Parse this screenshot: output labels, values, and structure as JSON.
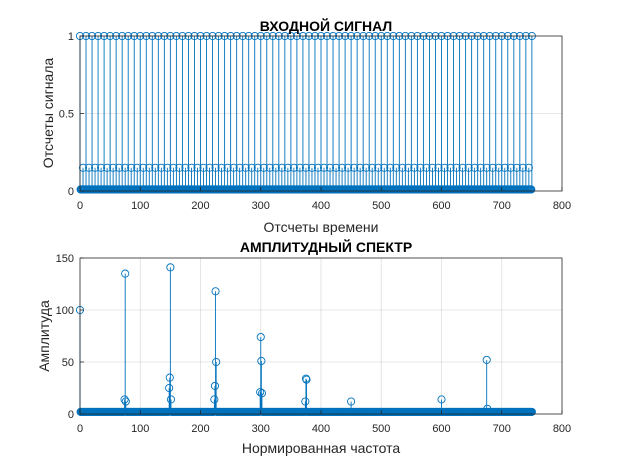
{
  "chart_data": [
    {
      "type": "stem",
      "title": "ВХОДНОЙ СИГНАЛ",
      "xlabel": "Отсчеты времени",
      "ylabel": "Отсчеты сигнала",
      "xlim": [
        0,
        800
      ],
      "ylim": [
        0,
        1
      ],
      "xticks": [
        "0",
        "100",
        "200",
        "300",
        "400",
        "500",
        "600",
        "700",
        "800"
      ],
      "yticks": [
        "0",
        "0.5",
        "1"
      ],
      "grid": true,
      "color": "#0072BD",
      "n_samples": 751,
      "peak_period": 10,
      "peak_x_first": 0,
      "peak_x_last": 750,
      "peak_value": 1,
      "secondary_period": 10,
      "secondary_offset": 5,
      "secondary_value": 0.15,
      "baseline_value": 0.01
    },
    {
      "type": "stem",
      "title": "АМПЛИТУДНЫЙ СПЕКТР",
      "xlabel": "Нормированная частота",
      "ylabel": "Амплитуда",
      "xlim": [
        0,
        800
      ],
      "ylim": [
        0,
        150
      ],
      "xticks": [
        "0",
        "100",
        "200",
        "300",
        "400",
        "500",
        "600",
        "700",
        "800"
      ],
      "yticks": [
        "0",
        "50",
        "100",
        "150"
      ],
      "grid": true,
      "color": "#0072BD",
      "n_bins": 751,
      "floor_value": 2,
      "peaks": [
        {
          "x": 0,
          "y": 100
        },
        {
          "x": 75,
          "y": 135
        },
        {
          "x": 74,
          "y": 14
        },
        {
          "x": 76,
          "y": 12
        },
        {
          "x": 150,
          "y": 141
        },
        {
          "x": 148,
          "y": 25
        },
        {
          "x": 149,
          "y": 35
        },
        {
          "x": 151,
          "y": 14
        },
        {
          "x": 225,
          "y": 118
        },
        {
          "x": 224,
          "y": 27
        },
        {
          "x": 226,
          "y": 50
        },
        {
          "x": 223,
          "y": 14
        },
        {
          "x": 300,
          "y": 74
        },
        {
          "x": 301,
          "y": 51
        },
        {
          "x": 299,
          "y": 21
        },
        {
          "x": 302,
          "y": 20
        },
        {
          "x": 375,
          "y": 34
        },
        {
          "x": 376,
          "y": 33
        },
        {
          "x": 374,
          "y": 12
        },
        {
          "x": 450,
          "y": 12
        },
        {
          "x": 600,
          "y": 14
        },
        {
          "x": 675,
          "y": 52
        },
        {
          "x": 676,
          "y": 5
        }
      ]
    }
  ]
}
